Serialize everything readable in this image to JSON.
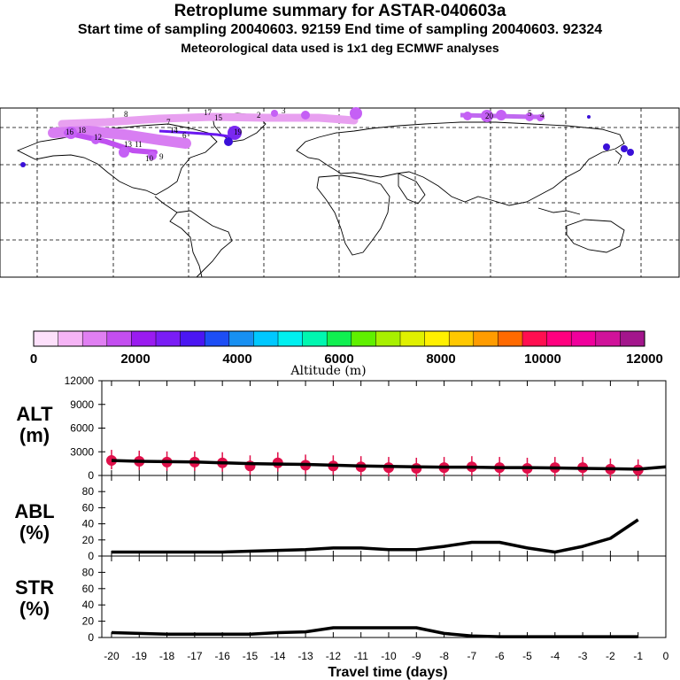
{
  "titles": {
    "line1": "Retroplume summary for ASTAR-040603a",
    "line2": "Start time of sampling 20040603. 92159     End time of sampling 20040603. 92324",
    "line3": "Meteorological data used is 1x1 deg ECMWF analyses"
  },
  "colorbar": {
    "colors": [
      "#fde0fb",
      "#f5b4f5",
      "#e07ff2",
      "#c34ef0",
      "#9a1bf0",
      "#7a1df5",
      "#4b16f2",
      "#1d4ef5",
      "#1890f2",
      "#00c8ff",
      "#00f0f0",
      "#00f7b0",
      "#10f050",
      "#60f000",
      "#a8f000",
      "#e0f000",
      "#fff000",
      "#ffc800",
      "#ff9c00",
      "#ff6a00",
      "#ff0f50",
      "#ff007f",
      "#f0009c",
      "#d0129a",
      "#a3168c"
    ],
    "tick_labels": [
      "0",
      "2000",
      "4000",
      "6000",
      "8000",
      "10000",
      "12000"
    ],
    "label": "Altitude (m)"
  },
  "panels": {
    "alt": {
      "label": "ALT\n(m)",
      "ticks": [
        "12000",
        "9000",
        "6000",
        "3000",
        "0"
      ],
      "ylim": [
        0,
        12000
      ]
    },
    "abl": {
      "label": "ABL\n(%)",
      "ticks": [
        "80",
        "60",
        "40",
        "20",
        "0"
      ],
      "ylim": [
        0,
        100
      ]
    },
    "str": {
      "label": "STR\n(%)",
      "ticks": [
        "80",
        "60",
        "40",
        "20",
        "0"
      ],
      "ylim": [
        0,
        100
      ]
    }
  },
  "x_axis": {
    "label": "Travel time (days)",
    "ticks": [
      "-20",
      "-19",
      "-18",
      "-17",
      "-16",
      "-15",
      "-14",
      "-13",
      "-12",
      "-11",
      "-10",
      "-9",
      "-8",
      "-7",
      "-6",
      "-5",
      "-4",
      "-3",
      "-2",
      "-1",
      "0"
    ]
  },
  "map_labels": [
    "10",
    "11",
    "12",
    "13",
    "14",
    "15",
    "16",
    "17",
    "18",
    "19",
    "20",
    "2",
    "3",
    "4",
    "5",
    "6",
    "7",
    "8",
    "9"
  ],
  "chart_data": {
    "type": "line",
    "x": [
      -20,
      -19,
      -18,
      -17,
      -16,
      -15,
      -14,
      -13,
      -12,
      -11,
      -10,
      -9,
      -8,
      -7,
      -6,
      -5,
      -4,
      -3,
      -2,
      -1,
      0
    ],
    "xlabel": "Travel time (days)",
    "series": [
      {
        "name": "ALT (m)",
        "values": [
          1900,
          1800,
          1750,
          1700,
          1600,
          1500,
          1450,
          1400,
          1300,
          1200,
          1150,
          1100,
          1050,
          1050,
          1000,
          1000,
          950,
          900,
          850,
          800,
          1100
        ]
      },
      {
        "name": "ABL (%)",
        "values": [
          5,
          5,
          5,
          5,
          5,
          6,
          7,
          8,
          10,
          10,
          8,
          8,
          12,
          17,
          17,
          10,
          5,
          12,
          22,
          45,
          null
        ]
      },
      {
        "name": "STR (%)",
        "values": [
          6,
          5,
          4,
          4,
          4,
          4,
          6,
          7,
          12,
          12,
          12,
          12,
          5,
          2,
          1,
          1,
          1,
          1,
          1,
          1,
          null
        ]
      }
    ],
    "alt_points": [
      {
        "x": -20,
        "y": 1900
      },
      {
        "x": -19,
        "y": 1800
      },
      {
        "x": -18,
        "y": 1700
      },
      {
        "x": -17,
        "y": 1700
      },
      {
        "x": -16,
        "y": 1600
      },
      {
        "x": -15,
        "y": 1200
      },
      {
        "x": -14,
        "y": 1600
      },
      {
        "x": -13,
        "y": 1300
      },
      {
        "x": -12,
        "y": 1200
      },
      {
        "x": -11,
        "y": 1100
      },
      {
        "x": -10,
        "y": 1000
      },
      {
        "x": -9,
        "y": 900
      },
      {
        "x": -8,
        "y": 1000
      },
      {
        "x": -7,
        "y": 1100
      },
      {
        "x": -6,
        "y": 1000
      },
      {
        "x": -5,
        "y": 900
      },
      {
        "x": -4,
        "y": 1000
      },
      {
        "x": -3,
        "y": 1000
      },
      {
        "x": -2,
        "y": 800
      },
      {
        "x": -1,
        "y": 700
      }
    ],
    "ylim": [
      0,
      12000
    ]
  }
}
